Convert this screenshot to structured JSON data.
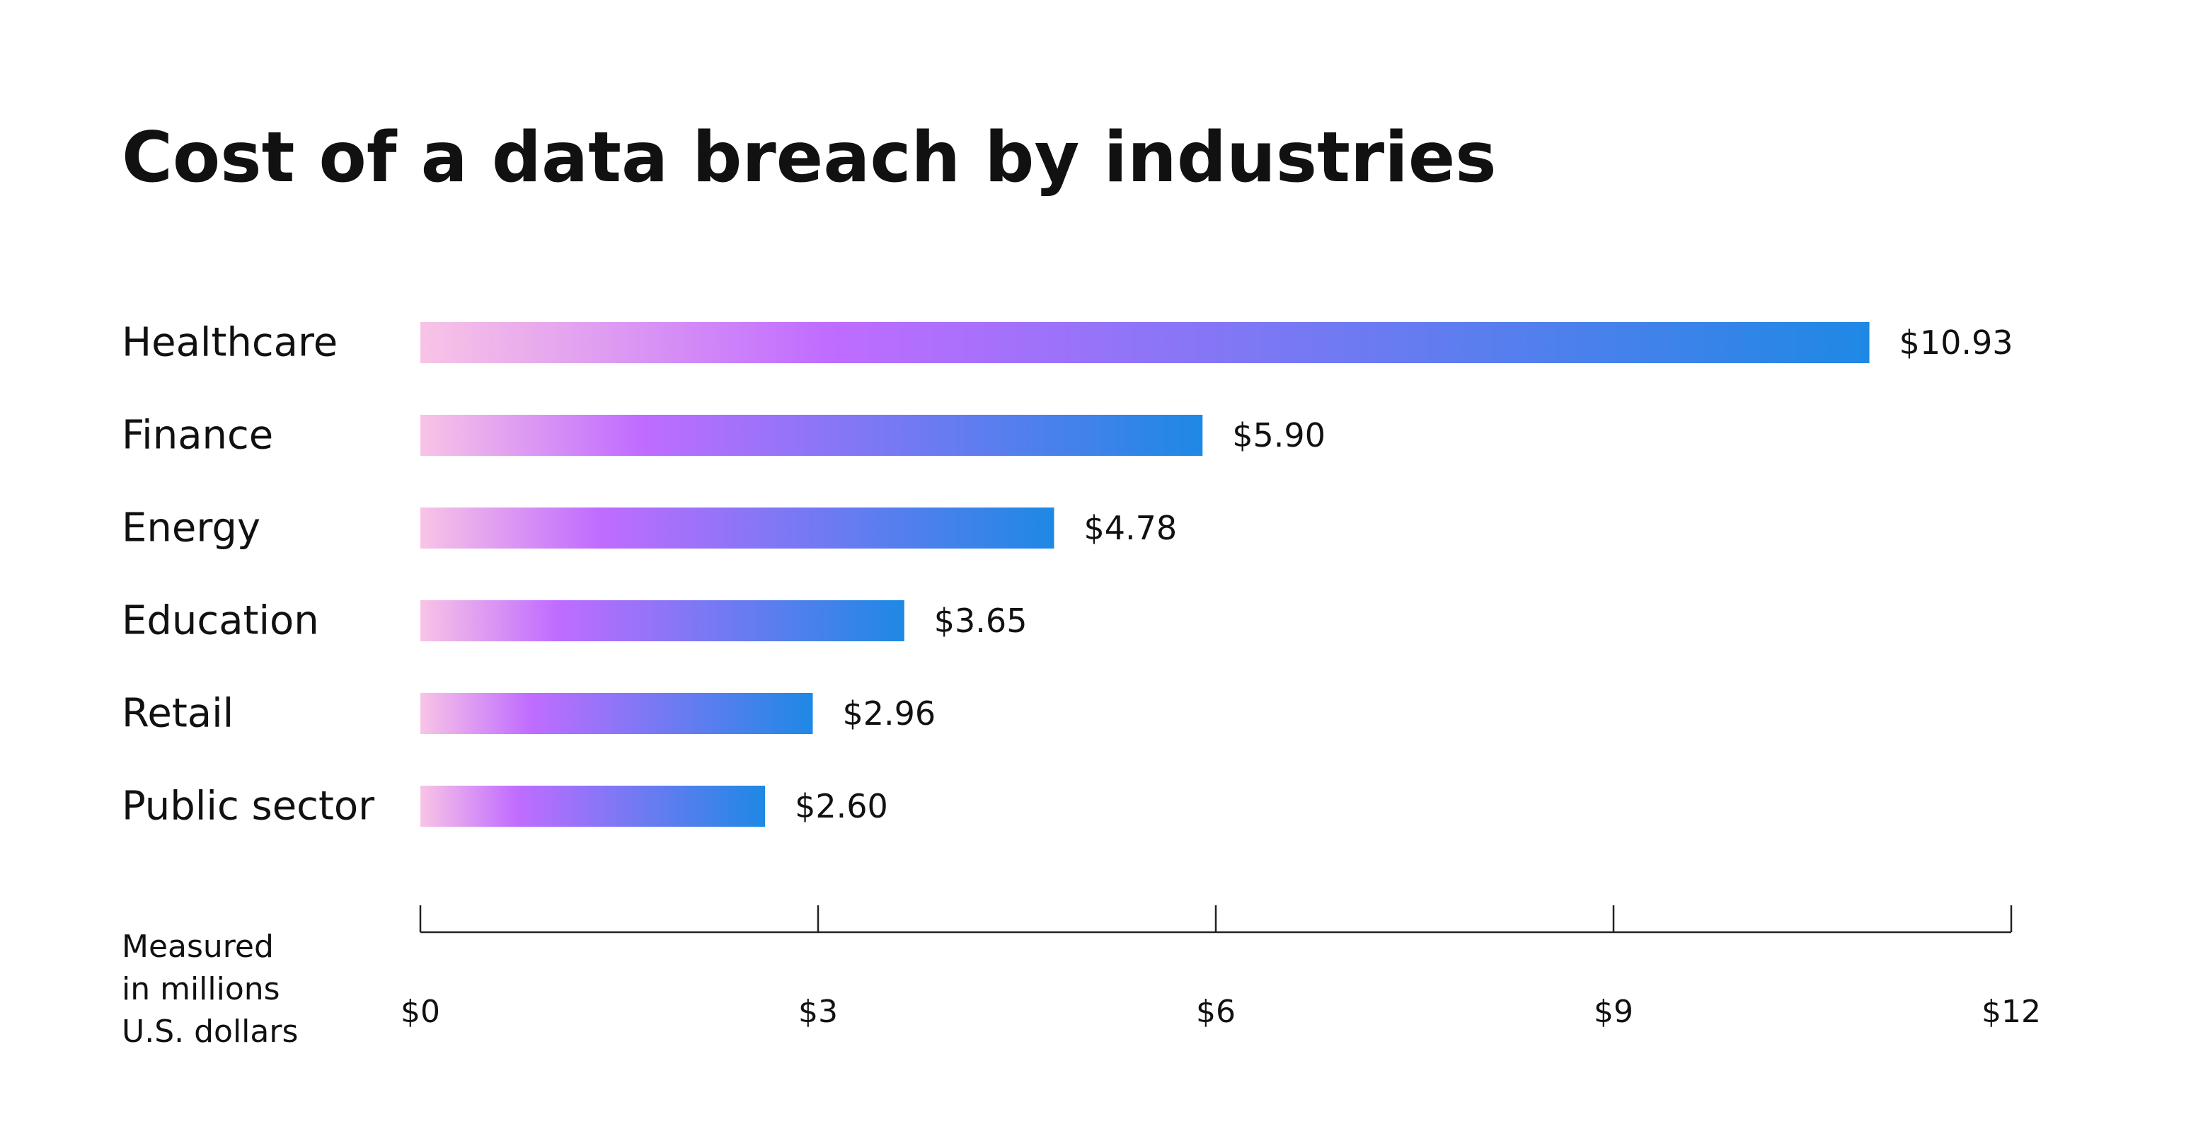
{
  "chart_data": {
    "type": "bar",
    "orientation": "horizontal",
    "title": "Cost of a data breach by industries",
    "categories": [
      "Healthcare",
      "Finance",
      "Energy",
      "Education",
      "Retail",
      "Public sector"
    ],
    "values": [
      10.93,
      5.9,
      4.78,
      3.65,
      2.96,
      2.6
    ],
    "value_labels": [
      "$10.93",
      "$5.90",
      "$4.78",
      "$3.65",
      "$2.96",
      "$2.60"
    ],
    "xlim": [
      0,
      12
    ],
    "x_ticks": [
      0,
      3,
      6,
      9,
      12
    ],
    "x_tick_labels": [
      "$0",
      "$3",
      "$6",
      "$9",
      "$12"
    ],
    "xlabel_lines": [
      "Measured",
      "in millions",
      "U.S. dollars"
    ],
    "ylabel": "",
    "grid": false,
    "legend": "none"
  },
  "colors": {
    "gradient_start": "#f8c4e6",
    "gradient_mid": "#c06cff",
    "gradient_end": "#1e88e5",
    "text": "#111111",
    "axis": "#222222",
    "background": "#ffffff"
  }
}
